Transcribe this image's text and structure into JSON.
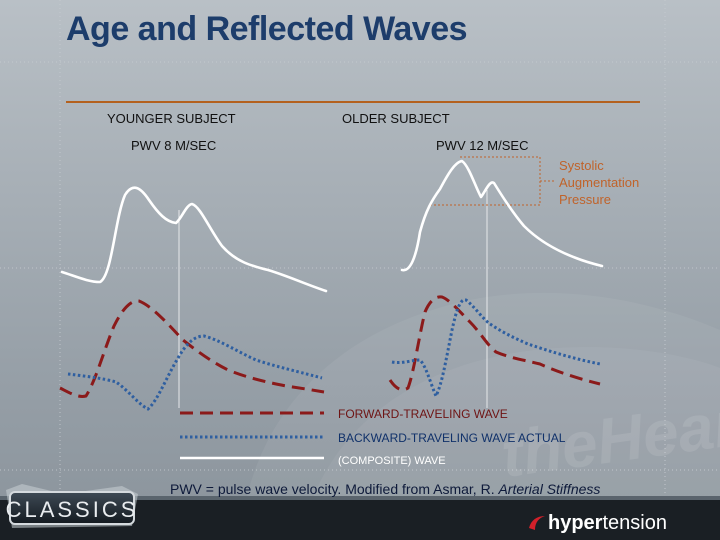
{
  "title": "Age and Reflected Waves",
  "panels": {
    "younger": {
      "heading": "YOUNGER SUBJECT",
      "pwv": "PWV  8  M/SEC"
    },
    "older": {
      "heading": "OLDER SUBJECT",
      "pwv": "PWV  12 M/SEC"
    }
  },
  "annotation": {
    "line1": "Systolic",
    "line2": "Augmentation",
    "line3": "Pressure"
  },
  "legend": {
    "forward": "FORWARD-TRAVELING WAVE",
    "backward": "BACKWARD-TRAVELING WAVE ACTUAL",
    "composite": "(COMPOSITE) WAVE"
  },
  "footnote": {
    "text": "PWV = pulse wave velocity.   Modified from Asmar, R. ",
    "citation": "Arterial Stiffness"
  },
  "branding": {
    "badge": "CLASSICS",
    "brand_bold": "hyper",
    "brand_light": "tension",
    "watermark": "theHeart.org"
  },
  "colors": {
    "title": "#1d3d6b",
    "forward_wave": "#8b1a1a",
    "backward_wave": "#2f5fa0",
    "composite_wave": "#ffffff",
    "augmentation": "#c0632a",
    "divider": "#b4611f"
  }
}
